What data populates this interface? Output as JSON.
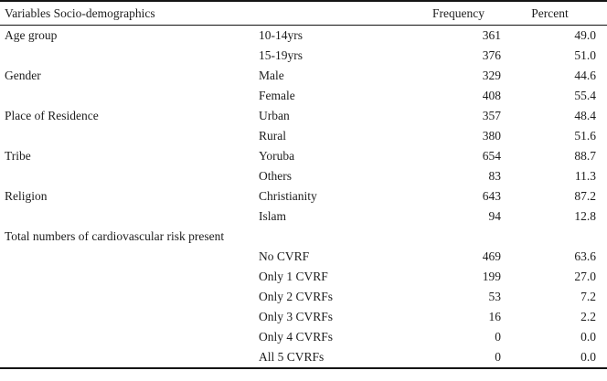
{
  "page": {
    "background": "#ffffff",
    "text_color": "#1c1c1c",
    "rule_color": "#141414"
  },
  "table": {
    "headers": {
      "variables": "Variables Socio-demographics",
      "category": "",
      "frequency": "Frequency",
      "percent": "Percent"
    },
    "rows": [
      {
        "group": "Age group",
        "category": "10-14yrs",
        "frequency": "361",
        "percent": "49.0"
      },
      {
        "group": "",
        "category": "15-19yrs",
        "frequency": "376",
        "percent": "51.0"
      },
      {
        "group": "Gender",
        "category": "Male",
        "frequency": "329",
        "percent": "44.6"
      },
      {
        "group": "",
        "category": "Female",
        "frequency": "408",
        "percent": "55.4"
      },
      {
        "group": "Place of Residence",
        "category": "Urban",
        "frequency": "357",
        "percent": "48.4"
      },
      {
        "group": "",
        "category": "Rural",
        "frequency": "380",
        "percent": "51.6"
      },
      {
        "group": "Tribe",
        "category": "Yoruba",
        "frequency": "654",
        "percent": "88.7"
      },
      {
        "group": "",
        "category": "Others",
        "frequency": "83",
        "percent": "11.3"
      },
      {
        "group": "Religion",
        "category": "Christianity",
        "frequency": "643",
        "percent": "87.2"
      },
      {
        "group": "",
        "category": "Islam",
        "frequency": "94",
        "percent": "12.8"
      },
      {
        "group": "Total numbers of cardiovascular risk present",
        "category": "",
        "frequency": "",
        "percent": ""
      },
      {
        "group": "",
        "category": "No CVRF",
        "frequency": "469",
        "percent": "63.6"
      },
      {
        "group": "",
        "category": "Only 1 CVRF",
        "frequency": "199",
        "percent": "27.0"
      },
      {
        "group": "",
        "category": "Only 2 CVRFs",
        "frequency": "53",
        "percent": "7.2"
      },
      {
        "group": "",
        "category": "Only 3 CVRFs",
        "frequency": "16",
        "percent": "2.2"
      },
      {
        "group": "",
        "category": "Only 4 CVRFs",
        "frequency": "0",
        "percent": "0.0"
      },
      {
        "group": "",
        "category": "All 5 CVRFs",
        "frequency": "0",
        "percent": "0.0"
      }
    ]
  }
}
